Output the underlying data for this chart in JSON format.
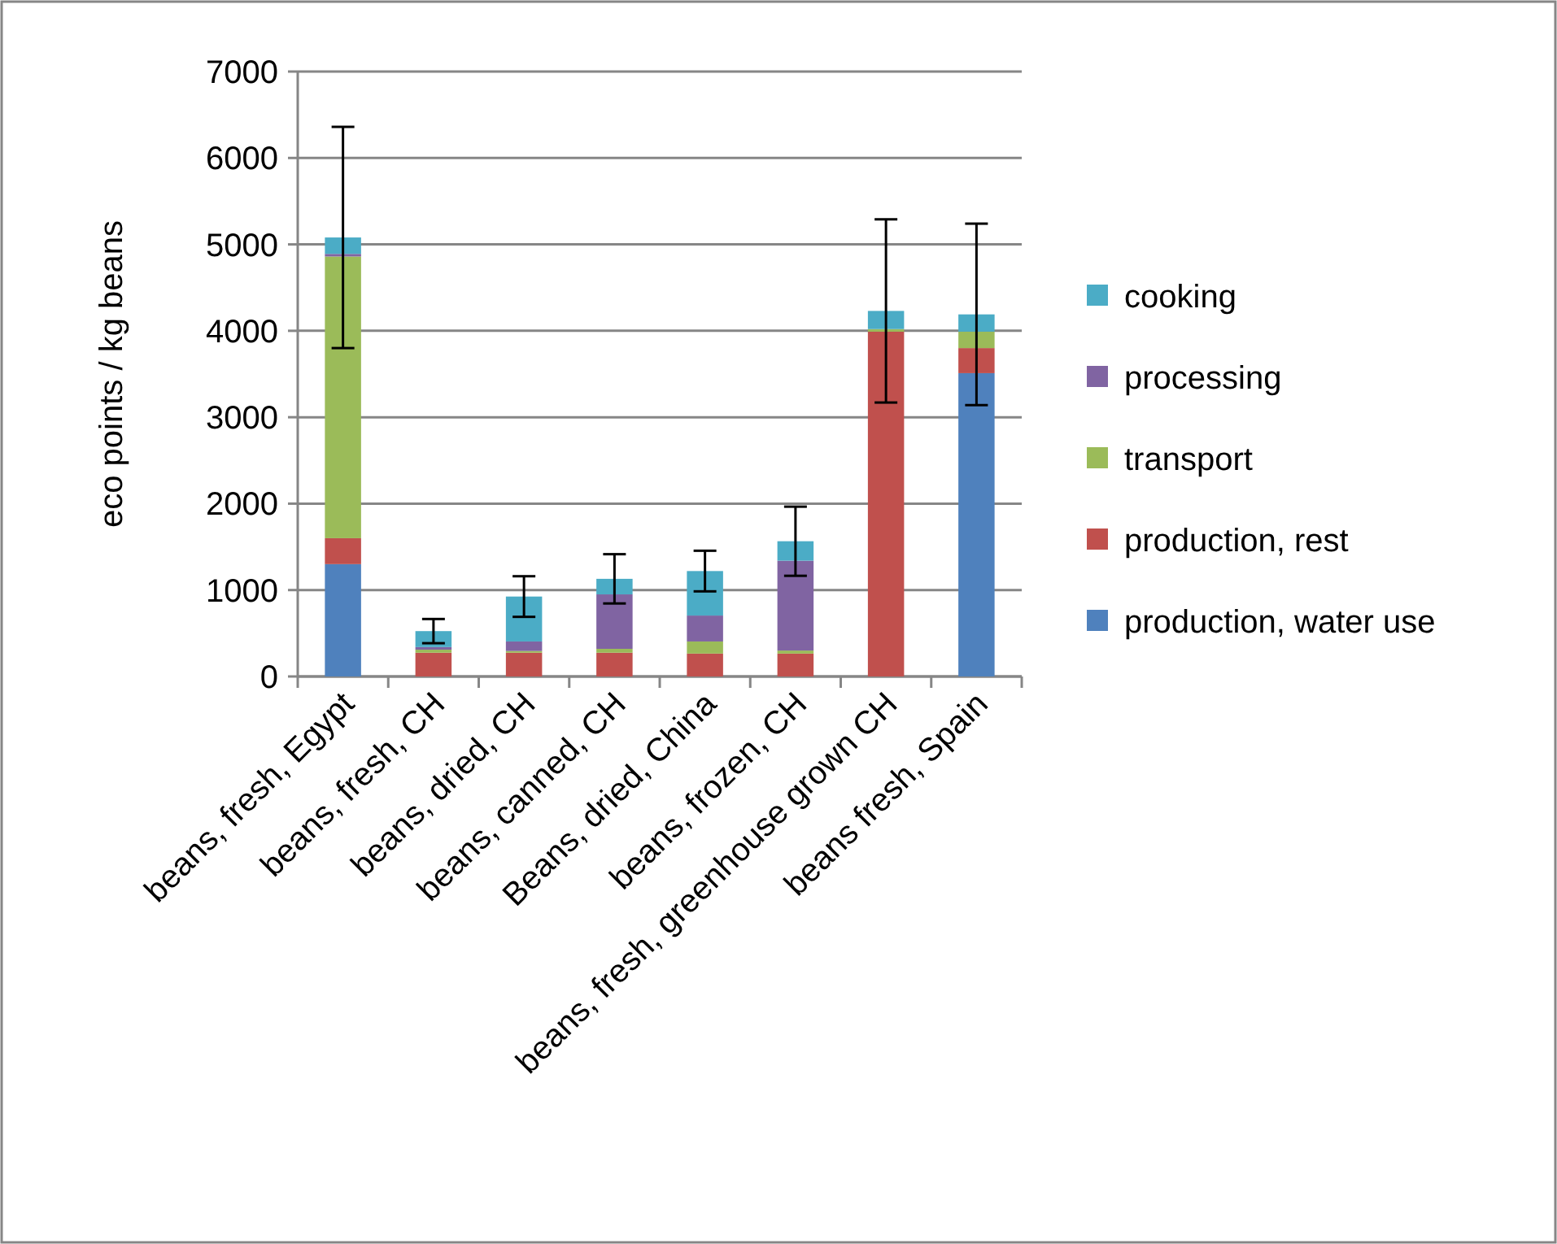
{
  "chart_data": {
    "type": "bar",
    "stacked": true,
    "ylabel": "eco points /  kg beans",
    "categories": [
      "beans, fresh, Egypt",
      "beans, fresh, CH",
      "beans, dried, CH",
      "beans, canned, CH",
      "Beans, dried, China",
      "beans, frozen, CH",
      "beans, fresh, greenhouse grown CH",
      "beans fresh, Spain"
    ],
    "series": [
      {
        "name": "production, water use",
        "color": "#4f81bd",
        "values": [
          1300,
          0,
          0,
          0,
          0,
          0,
          0,
          3510
        ]
      },
      {
        "name": "production, rest",
        "color": "#c0504d",
        "values": [
          300,
          275,
          275,
          275,
          265,
          265,
          3990,
          290
        ]
      },
      {
        "name": "transport",
        "color": "#9bbb59",
        "values": [
          3260,
          35,
          20,
          45,
          140,
          35,
          30,
          190
        ]
      },
      {
        "name": "processing",
        "color": "#8064a2",
        "values": [
          30,
          30,
          110,
          630,
          300,
          1040,
          0,
          0
        ]
      },
      {
        "name": "cooking",
        "color": "#4bacc6",
        "values": [
          190,
          185,
          520,
          180,
          515,
          225,
          210,
          200
        ],
        "errors": [
          1280,
          140,
          235,
          285,
          235,
          400,
          1060,
          1050
        ]
      }
    ],
    "ylim": [
      0,
      7000
    ],
    "yticks": [
      0,
      1000,
      2000,
      3000,
      4000,
      5000,
      6000,
      7000
    ],
    "grid": "y",
    "legend": "right"
  }
}
